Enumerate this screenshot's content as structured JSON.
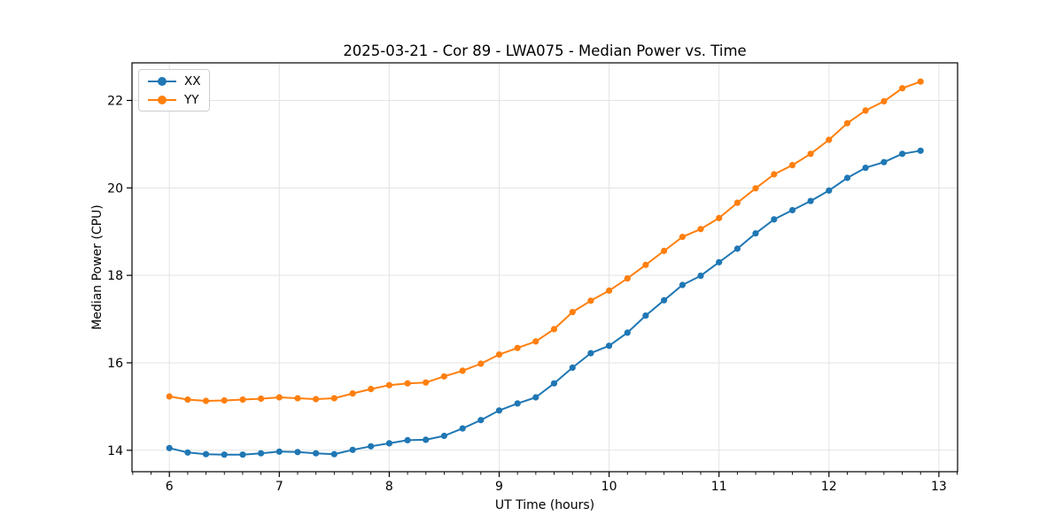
{
  "style": {
    "background": "#ffffff",
    "grid_color": "#e3e3e3",
    "spine_color": "#000000",
    "tick_color": "#000000",
    "text_color": "#000000"
  },
  "chart_data": {
    "type": "line",
    "title": "2025-03-21 - Cor 89 - LWA075 - Median Power vs. Time",
    "xlabel": "UT Time (hours)",
    "ylabel": "Median Power (CPU)",
    "grid": true,
    "legend_position": "upper left",
    "marker": "o",
    "xlim": [
      5.66,
      13.17
    ],
    "ylim": [
      13.51,
      22.86
    ],
    "x_ticks": [
      6,
      7,
      8,
      9,
      10,
      11,
      12,
      13
    ],
    "y_ticks": [
      14,
      16,
      18,
      20,
      22
    ],
    "x_minor_step": 0.166667,
    "x": [
      6.0,
      6.167,
      6.333,
      6.5,
      6.667,
      6.833,
      7.0,
      7.167,
      7.333,
      7.5,
      7.667,
      7.833,
      8.0,
      8.167,
      8.333,
      8.5,
      8.667,
      8.833,
      9.0,
      9.167,
      9.333,
      9.5,
      9.667,
      9.833,
      10.0,
      10.167,
      10.333,
      10.5,
      10.667,
      10.833,
      11.0,
      11.167,
      11.333,
      11.5,
      11.667,
      11.833,
      12.0,
      12.167,
      12.333,
      12.5,
      12.667,
      12.833
    ],
    "series": [
      {
        "name": "XX",
        "color": "#1f77b4",
        "values": [
          14.05,
          13.95,
          13.91,
          13.9,
          13.9,
          13.93,
          13.97,
          13.96,
          13.93,
          13.91,
          14.01,
          14.09,
          14.16,
          14.23,
          14.24,
          14.33,
          14.5,
          14.69,
          14.91,
          15.07,
          15.21,
          15.53,
          15.89,
          16.22,
          16.39,
          16.69,
          17.08,
          17.43,
          17.78,
          17.99,
          18.3,
          18.61,
          18.96,
          19.28,
          19.49,
          19.7,
          19.94,
          20.23,
          20.46,
          20.59,
          20.78,
          20.85
        ]
      },
      {
        "name": "YY",
        "color": "#ff7f0e",
        "values": [
          15.23,
          15.16,
          15.13,
          15.14,
          15.16,
          15.18,
          15.21,
          15.19,
          15.17,
          15.19,
          15.3,
          15.4,
          15.49,
          15.53,
          15.55,
          15.69,
          15.82,
          15.98,
          16.19,
          16.34,
          16.49,
          16.77,
          17.16,
          17.42,
          17.65,
          17.93,
          18.24,
          18.56,
          18.88,
          19.06,
          19.31,
          19.66,
          19.99,
          20.31,
          20.52,
          20.78,
          21.1,
          21.48,
          21.77,
          21.98,
          22.28,
          22.43
        ]
      }
    ]
  }
}
